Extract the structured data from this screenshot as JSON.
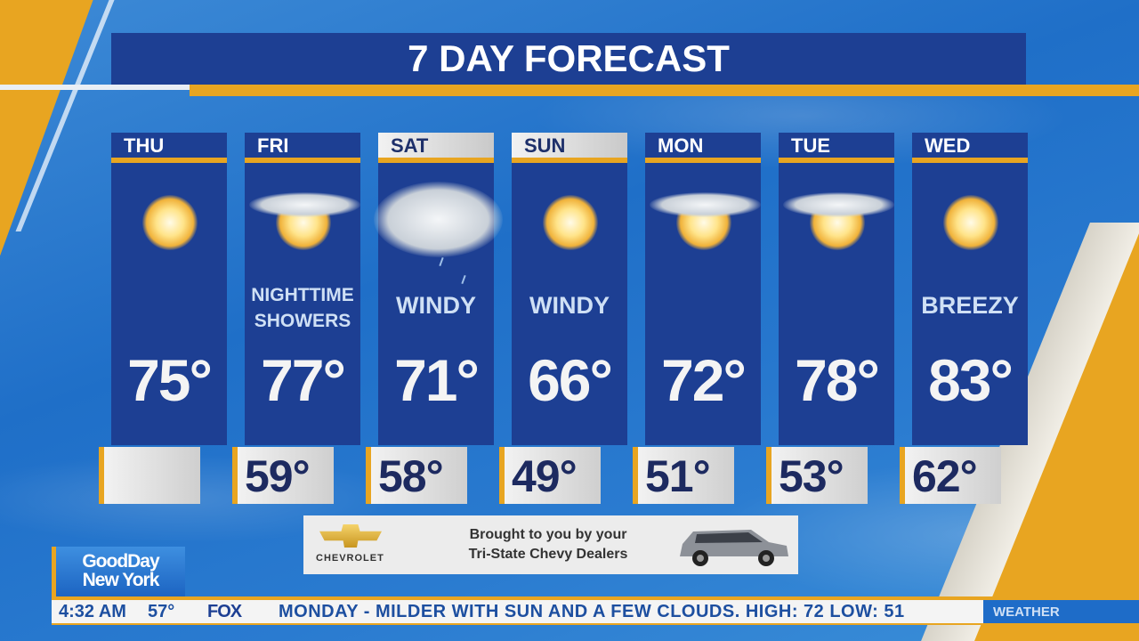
{
  "title": "7 DAY FORECAST",
  "days": [
    {
      "day": "THU",
      "icon": "sun-icon",
      "condition": "",
      "high": "75°",
      "low": "",
      "header_style": "dark"
    },
    {
      "day": "FRI",
      "icon": "sun-cloud-icon",
      "condition": "NIGHTTIME SHOWERS",
      "high": "77°",
      "low": "59°",
      "header_style": "dark"
    },
    {
      "day": "SAT",
      "icon": "cloud-rain-icon",
      "condition": "WINDY",
      "high": "71°",
      "low": "58°",
      "header_style": "light"
    },
    {
      "day": "SUN",
      "icon": "sun-icon",
      "condition": "WINDY",
      "high": "66°",
      "low": "49°",
      "header_style": "light"
    },
    {
      "day": "MON",
      "icon": "sun-cloud-icon",
      "condition": "",
      "high": "72°",
      "low": "51°",
      "header_style": "dark"
    },
    {
      "day": "TUE",
      "icon": "sun-cloud-icon",
      "condition": "",
      "high": "78°",
      "low": "53°",
      "header_style": "dark"
    },
    {
      "day": "WED",
      "icon": "sun-icon",
      "condition": "BREEZY",
      "high": "83°",
      "low": "62°",
      "header_style": "dark"
    }
  ],
  "sponsor": {
    "brand": "CHEVROLET",
    "line1": "Brought to you by your",
    "line2": "Tri-State Chevy Dealers"
  },
  "show_logo": {
    "line1": "GoodDay",
    "line2": "New York"
  },
  "ticker": {
    "time": "4:32 AM",
    "temp": "57°",
    "network": "FOX",
    "message": "MONDAY - MILDER WITH SUN AND A FEW CLOUDS. HIGH: 72 LOW: 51",
    "section": "WEATHER"
  },
  "colors": {
    "panel": "#1d3f93",
    "accent": "#e8a521",
    "sky": "#1f6fc8"
  }
}
